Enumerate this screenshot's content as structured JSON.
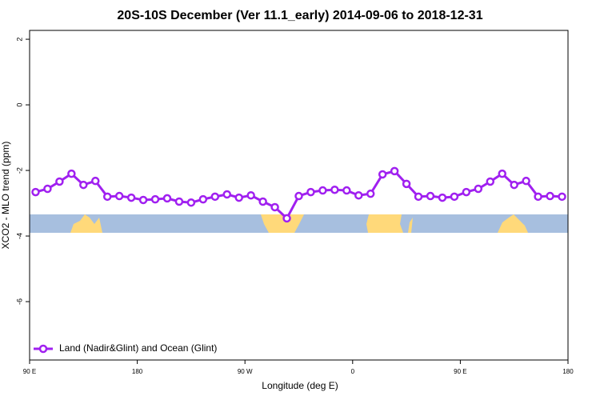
{
  "chart_data": {
    "type": "line",
    "title": "20S-10S December (Ver 11.1_early)   2014-09-06 to 2018-12-31",
    "x_label": "Longitude (deg E)",
    "y_label": "XCO2 - MLO trend (ppm)",
    "x": [
      95,
      105,
      115,
      125,
      135,
      145,
      155,
      165,
      175,
      185,
      195,
      205,
      215,
      225,
      235,
      245,
      255,
      265,
      275,
      285,
      295,
      305,
      315,
      325,
      335,
      345,
      355,
      365,
      375,
      385,
      395,
      405,
      415,
      425,
      435,
      445,
      455,
      465,
      475,
      485,
      495,
      505,
      515,
      525,
      535
    ],
    "series": [
      {
        "name": "Land (Nadir&Glint) and Ocean (Glint)",
        "color": "#a020f0",
        "values": [
          -2.66,
          -2.56,
          -2.34,
          -2.1,
          -2.44,
          -2.32,
          -2.8,
          -2.78,
          -2.83,
          -2.9,
          -2.88,
          -2.85,
          -2.95,
          -2.98,
          -2.88,
          -2.8,
          -2.73,
          -2.83,
          -2.76,
          -2.95,
          -3.12,
          -3.46,
          -2.78,
          -2.66,
          -2.61,
          -2.59,
          -2.61,
          -2.76,
          -2.71,
          -2.12,
          -2.02,
          -2.41,
          -2.8,
          -2.78,
          -2.83,
          -2.8,
          -2.66,
          -2.56,
          -2.34,
          -2.1,
          -2.44,
          -2.32,
          -2.8,
          -2.78,
          -2.8
        ]
      }
    ],
    "xlim": [
      90,
      540
    ],
    "ylim": [
      -7.78,
      2.27
    ],
    "xticks": [
      {
        "value": 90,
        "label": "90 E"
      },
      {
        "value": 180,
        "label": "180"
      },
      {
        "value": 270,
        "label": "90 W"
      },
      {
        "value": 360,
        "label": "0"
      },
      {
        "value": 450,
        "label": "90 E"
      },
      {
        "value": 540,
        "label": "180"
      }
    ],
    "yticks": [
      2,
      0,
      -2,
      -4,
      -6
    ],
    "legend": "bottom-left"
  }
}
